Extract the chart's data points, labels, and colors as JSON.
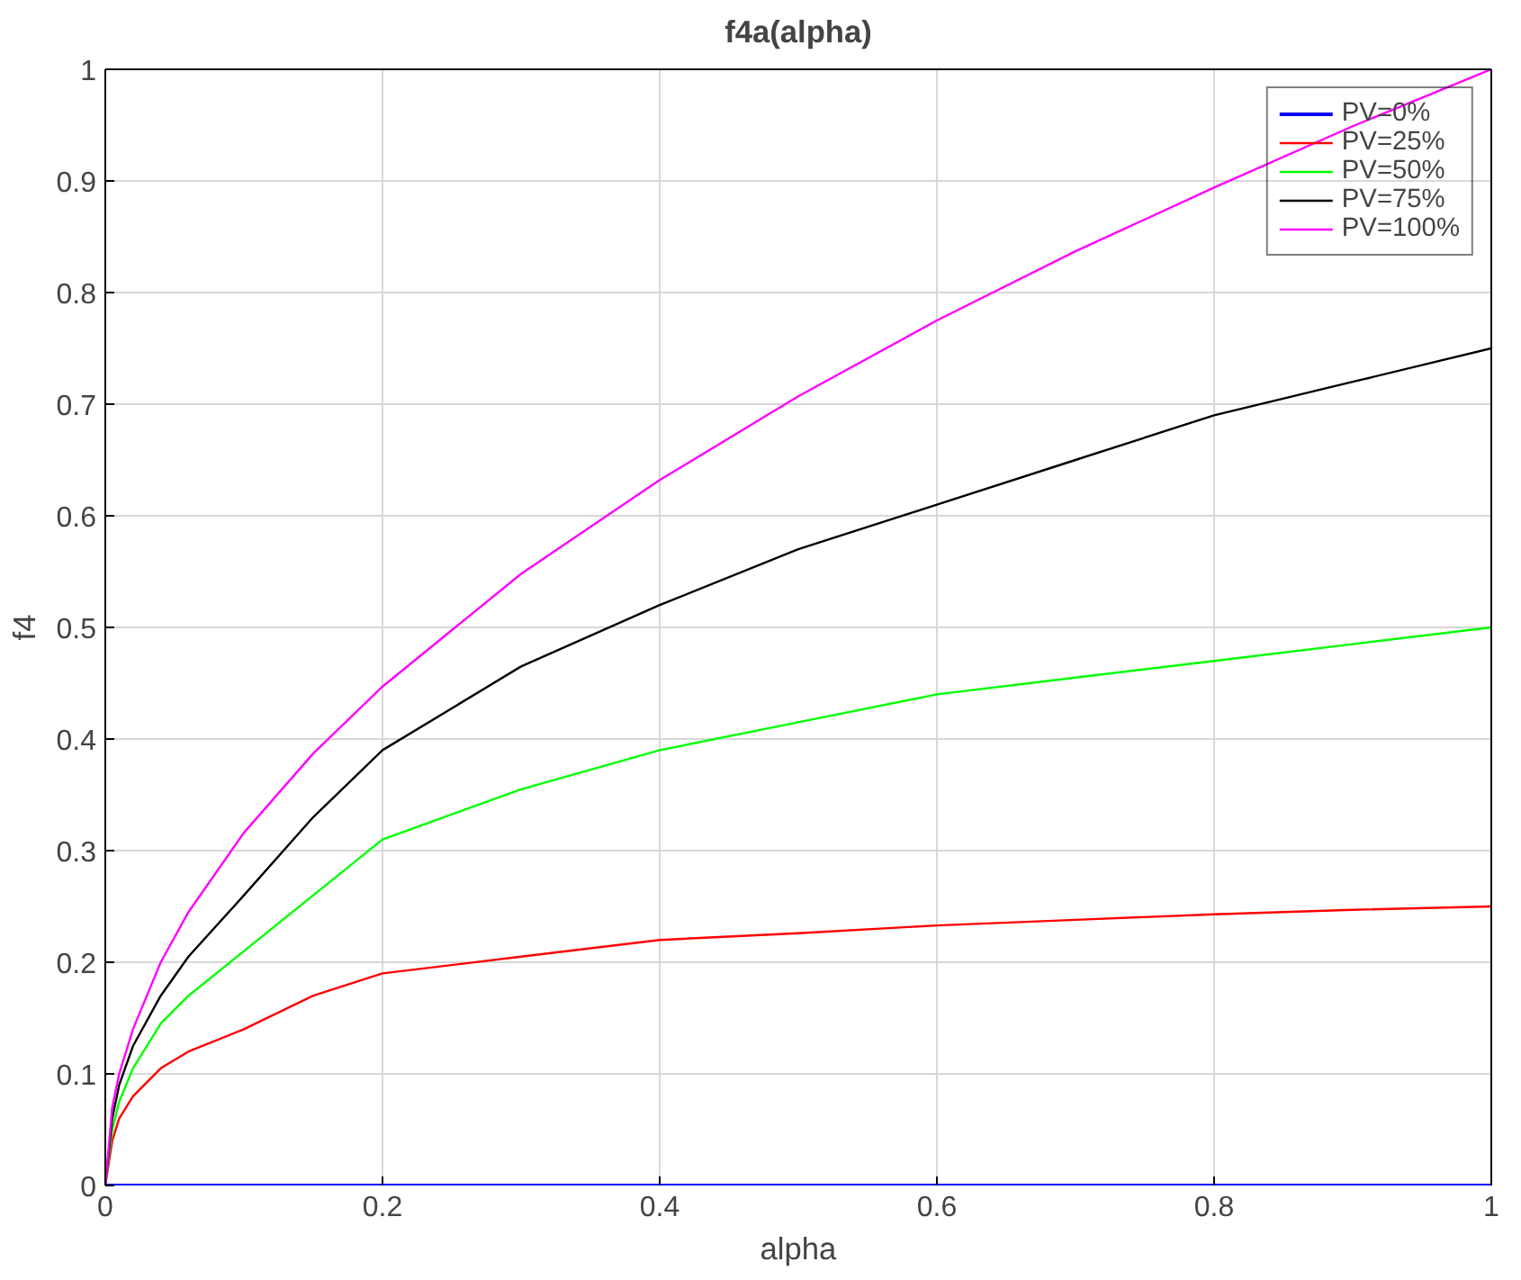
{
  "chart_data": {
    "type": "line",
    "title": "f4a(alpha)",
    "xlabel": "alpha",
    "ylabel": "f4",
    "x": [
      0,
      0.005,
      0.01,
      0.02,
      0.04,
      0.06,
      0.1,
      0.15,
      0.2,
      0.3,
      0.4,
      0.5,
      0.6,
      0.7,
      0.8,
      0.9,
      1
    ],
    "series": [
      {
        "name": "PV=0%",
        "color": "#0000ff",
        "values": [
          0,
          0,
          0,
          0,
          0,
          0,
          0,
          0,
          0,
          0,
          0,
          0,
          0,
          0,
          0,
          0,
          0
        ]
      },
      {
        "name": "PV=25%",
        "color": "#ff0000",
        "values": [
          0,
          0.04,
          0.06,
          0.08,
          0.105,
          0.12,
          0.14,
          0.17,
          0.19,
          0.205,
          0.22,
          0.226,
          0.233,
          0.238,
          0.243,
          0.247,
          0.25
        ]
      },
      {
        "name": "PV=50%",
        "color": "#00ff00",
        "values": [
          0,
          0.05,
          0.075,
          0.105,
          0.145,
          0.17,
          0.21,
          0.26,
          0.31,
          0.355,
          0.39,
          0.415,
          0.44,
          0.455,
          0.47,
          0.485,
          0.5
        ]
      },
      {
        "name": "PV=75%",
        "color": "#000000",
        "values": [
          0,
          0.06,
          0.09,
          0.125,
          0.17,
          0.205,
          0.26,
          0.33,
          0.39,
          0.465,
          0.52,
          0.57,
          0.61,
          0.65,
          0.69,
          0.72,
          0.75
        ]
      },
      {
        "name": "PV=100%",
        "color": "#ff00ff",
        "values": [
          0,
          0.07,
          0.1,
          0.14,
          0.2,
          0.245,
          0.316,
          0.387,
          0.447,
          0.548,
          0.632,
          0.707,
          0.775,
          0.837,
          0.894,
          0.949,
          1
        ]
      }
    ],
    "xlim": [
      0,
      1
    ],
    "ylim": [
      0,
      1
    ],
    "xticks": [
      0,
      0.2,
      0.4,
      0.6,
      0.8,
      1
    ],
    "yticks": [
      0,
      0.1,
      0.2,
      0.3,
      0.4,
      0.5,
      0.6,
      0.7,
      0.8,
      0.9,
      1
    ],
    "grid": true,
    "legend": "top right",
    "line_style": "solid",
    "marker": "none"
  }
}
